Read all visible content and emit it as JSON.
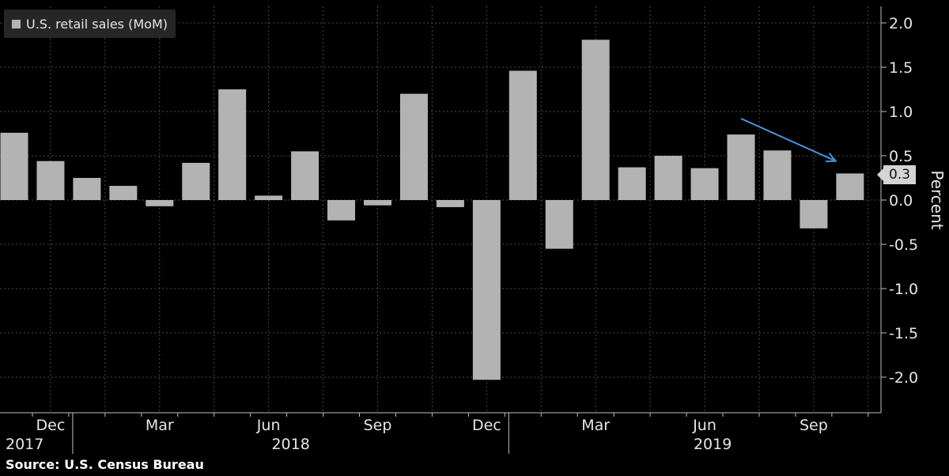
{
  "legend": {
    "label": "U.S. retail sales (MoM)",
    "swatch_color": "#b3b3b3"
  },
  "source": "Source: U.S. Census Bureau",
  "callout": "0.3",
  "colors": {
    "bar": "#b3b3b3",
    "grid": "#4a4a4a",
    "axis": "#bfbfbf",
    "arrow": "#4a90d9"
  },
  "chart_data": {
    "type": "bar",
    "ylabel": "Percent",
    "ylim": [
      -2.4,
      2.15
    ],
    "yticks": [
      2.0,
      1.5,
      1.0,
      0.5,
      0.0,
      -0.5,
      -1.0,
      -1.5,
      -2.0
    ],
    "ytick_labels": [
      "2.0",
      "1.5",
      "1.0",
      "0.5",
      "0.0",
      "-0.5",
      "-1.0",
      "-1.5",
      "-2.0"
    ],
    "categories": [
      "Nov 2017",
      "Dec 2017",
      "Jan 2018",
      "Feb 2018",
      "Mar 2018",
      "Apr 2018",
      "May 2018",
      "Jun 2018",
      "Jul 2018",
      "Aug 2018",
      "Sep 2018",
      "Oct 2018",
      "Nov 2018",
      "Dec 2018",
      "Jan 2019",
      "Feb 2019",
      "Mar 2019",
      "Apr 2019",
      "May 2019",
      "Jun 2019",
      "Jul 2019",
      "Aug 2019",
      "Sep 2019",
      "Oct 2019"
    ],
    "values": [
      0.76,
      0.44,
      0.25,
      0.16,
      -0.07,
      0.42,
      1.25,
      0.05,
      0.55,
      -0.23,
      -0.06,
      1.2,
      -0.08,
      -2.03,
      1.46,
      -0.55,
      1.81,
      0.37,
      0.5,
      0.36,
      0.74,
      0.56,
      -0.32,
      0.3
    ],
    "month_ticks": [
      {
        "index": 1,
        "label": "Dec"
      },
      {
        "index": 4,
        "label": "Mar"
      },
      {
        "index": 7,
        "label": "Jun"
      },
      {
        "index": 10,
        "label": "Sep"
      },
      {
        "index": 13,
        "label": "Dec"
      },
      {
        "index": 16,
        "label": "Mar"
      },
      {
        "index": 19,
        "label": "Jun"
      },
      {
        "index": 22,
        "label": "Sep"
      }
    ],
    "year_labels": [
      "2017",
      "2018",
      "2019"
    ],
    "year_separators": [
      1.5,
      13.5
    ],
    "trend_arrow": {
      "from": {
        "index": 20,
        "value": 0.92
      },
      "to": {
        "index": 23,
        "value": 0.44
      }
    },
    "grid": true,
    "legend_position": "top-left"
  }
}
